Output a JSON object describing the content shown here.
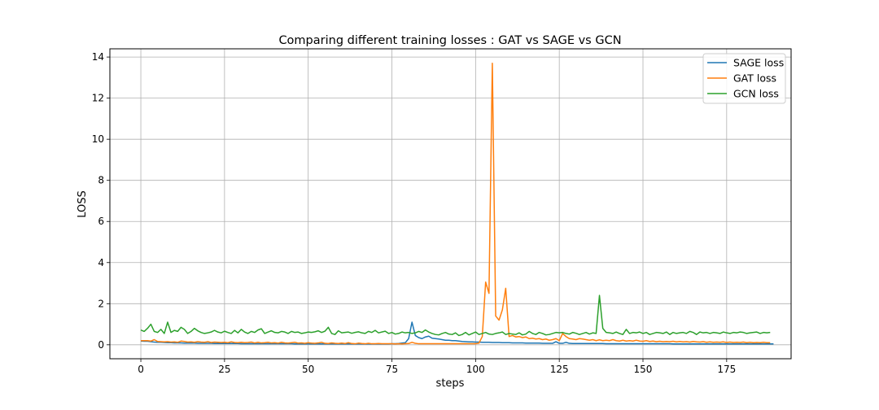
{
  "chart_data": {
    "type": "line",
    "title": "Comparing different training losses : GAT vs SAGE vs GCN",
    "xlabel": "steps",
    "ylabel": "LOSS",
    "xlim": [
      -9.25,
      194.25
    ],
    "ylim": [
      -0.68,
      14.4
    ],
    "xticks": [
      0,
      25,
      50,
      75,
      100,
      125,
      150,
      175
    ],
    "yticks": [
      0,
      2,
      4,
      6,
      8,
      10,
      12,
      14
    ],
    "grid": true,
    "legend": "top-right",
    "series": [
      {
        "name": "SAGE loss",
        "color": "#1f77b4",
        "values": [
          0.18,
          0.17,
          0.17,
          0.15,
          0.13,
          0.12,
          0.12,
          0.11,
          0.1,
          0.1,
          0.09,
          0.09,
          0.09,
          0.08,
          0.08,
          0.08,
          0.08,
          0.07,
          0.07,
          0.07,
          0.07,
          0.07,
          0.06,
          0.06,
          0.06,
          0.06,
          0.06,
          0.06,
          0.06,
          0.06,
          0.05,
          0.05,
          0.05,
          0.05,
          0.05,
          0.05,
          0.05,
          0.05,
          0.05,
          0.05,
          0.05,
          0.05,
          0.05,
          0.05,
          0.05,
          0.05,
          0.04,
          0.04,
          0.04,
          0.04,
          0.04,
          0.04,
          0.04,
          0.04,
          0.04,
          0.04,
          0.04,
          0.04,
          0.04,
          0.04,
          0.04,
          0.04,
          0.04,
          0.04,
          0.04,
          0.04,
          0.04,
          0.04,
          0.04,
          0.04,
          0.04,
          0.04,
          0.04,
          0.04,
          0.04,
          0.05,
          0.05,
          0.06,
          0.08,
          0.1,
          0.3,
          1.1,
          0.45,
          0.35,
          0.3,
          0.38,
          0.42,
          0.32,
          0.3,
          0.28,
          0.25,
          0.22,
          0.22,
          0.2,
          0.2,
          0.18,
          0.16,
          0.15,
          0.14,
          0.14,
          0.13,
          0.13,
          0.12,
          0.12,
          0.12,
          0.11,
          0.11,
          0.11,
          0.1,
          0.1,
          0.1,
          0.09,
          0.09,
          0.09,
          0.09,
          0.08,
          0.08,
          0.08,
          0.08,
          0.08,
          0.07,
          0.07,
          0.07,
          0.07,
          0.15,
          0.07,
          0.07,
          0.12,
          0.07,
          0.06,
          0.06,
          0.06,
          0.06,
          0.06,
          0.06,
          0.06,
          0.06,
          0.06,
          0.06,
          0.05,
          0.05,
          0.05,
          0.05,
          0.05,
          0.05,
          0.05,
          0.05,
          0.05,
          0.05,
          0.05,
          0.05,
          0.05,
          0.05,
          0.05,
          0.05,
          0.05,
          0.05,
          0.05,
          0.05,
          0.04,
          0.04,
          0.04,
          0.04,
          0.04,
          0.04,
          0.04,
          0.04,
          0.04,
          0.04,
          0.04,
          0.04,
          0.04,
          0.04,
          0.04,
          0.04,
          0.04,
          0.04,
          0.04,
          0.04,
          0.04,
          0.04,
          0.04,
          0.04,
          0.04,
          0.04,
          0.04,
          0.04,
          0.04,
          0.04,
          0.04
        ]
      },
      {
        "name": "GAT loss",
        "color": "#ff7f0e",
        "values": [
          0.2,
          0.2,
          0.2,
          0.18,
          0.25,
          0.16,
          0.15,
          0.14,
          0.15,
          0.13,
          0.14,
          0.12,
          0.18,
          0.16,
          0.13,
          0.14,
          0.12,
          0.15,
          0.13,
          0.12,
          0.15,
          0.11,
          0.13,
          0.12,
          0.11,
          0.12,
          0.1,
          0.14,
          0.11,
          0.1,
          0.12,
          0.1,
          0.11,
          0.13,
          0.09,
          0.12,
          0.09,
          0.1,
          0.12,
          0.09,
          0.1,
          0.08,
          0.12,
          0.09,
          0.08,
          0.1,
          0.12,
          0.08,
          0.09,
          0.07,
          0.1,
          0.08,
          0.07,
          0.09,
          0.12,
          0.07,
          0.06,
          0.09,
          0.07,
          0.06,
          0.08,
          0.06,
          0.1,
          0.06,
          0.05,
          0.08,
          0.06,
          0.05,
          0.07,
          0.05,
          0.05,
          0.06,
          0.05,
          0.05,
          0.05,
          0.05,
          0.04,
          0.05,
          0.04,
          0.05,
          0.06,
          0.12,
          0.07,
          0.05,
          0.05,
          0.05,
          0.05,
          0.05,
          0.05,
          0.05,
          0.05,
          0.05,
          0.05,
          0.05,
          0.05,
          0.05,
          0.05,
          0.05,
          0.05,
          0.05,
          0.05,
          0.08,
          0.4,
          3.05,
          2.5,
          13.7,
          1.4,
          1.2,
          1.7,
          2.75,
          0.4,
          0.45,
          0.38,
          0.4,
          0.35,
          0.38,
          0.3,
          0.32,
          0.28,
          0.3,
          0.25,
          0.28,
          0.22,
          0.25,
          0.3,
          0.2,
          0.55,
          0.4,
          0.3,
          0.28,
          0.25,
          0.3,
          0.28,
          0.25,
          0.22,
          0.25,
          0.2,
          0.24,
          0.2,
          0.22,
          0.2,
          0.25,
          0.2,
          0.18,
          0.22,
          0.18,
          0.2,
          0.18,
          0.22,
          0.18,
          0.17,
          0.2,
          0.16,
          0.18,
          0.15,
          0.17,
          0.15,
          0.16,
          0.15,
          0.17,
          0.14,
          0.16,
          0.14,
          0.15,
          0.13,
          0.16,
          0.14,
          0.13,
          0.15,
          0.12,
          0.14,
          0.12,
          0.13,
          0.12,
          0.14,
          0.11,
          0.13,
          0.11,
          0.12,
          0.11,
          0.13,
          0.1,
          0.12,
          0.1,
          0.11,
          0.1,
          0.12,
          0.1,
          0.1
        ]
      },
      {
        "name": "GCN loss",
        "color": "#2ca02c",
        "values": [
          0.72,
          0.65,
          0.8,
          1.0,
          0.65,
          0.6,
          0.75,
          0.55,
          1.1,
          0.6,
          0.7,
          0.65,
          0.85,
          0.75,
          0.55,
          0.65,
          0.8,
          0.68,
          0.6,
          0.55,
          0.58,
          0.62,
          0.7,
          0.62,
          0.58,
          0.66,
          0.6,
          0.55,
          0.7,
          0.58,
          0.75,
          0.62,
          0.55,
          0.65,
          0.6,
          0.72,
          0.78,
          0.55,
          0.62,
          0.68,
          0.6,
          0.58,
          0.65,
          0.62,
          0.55,
          0.65,
          0.6,
          0.62,
          0.55,
          0.58,
          0.62,
          0.6,
          0.63,
          0.68,
          0.6,
          0.66,
          0.85,
          0.55,
          0.5,
          0.68,
          0.58,
          0.6,
          0.62,
          0.56,
          0.6,
          0.63,
          0.58,
          0.55,
          0.65,
          0.6,
          0.7,
          0.58,
          0.62,
          0.66,
          0.55,
          0.6,
          0.52,
          0.55,
          0.62,
          0.58,
          0.6,
          0.55,
          0.58,
          0.65,
          0.6,
          0.72,
          0.62,
          0.55,
          0.5,
          0.48,
          0.55,
          0.6,
          0.52,
          0.5,
          0.58,
          0.45,
          0.5,
          0.6,
          0.48,
          0.55,
          0.62,
          0.5,
          0.55,
          0.6,
          0.52,
          0.5,
          0.55,
          0.58,
          0.62,
          0.5,
          0.55,
          0.52,
          0.5,
          0.58,
          0.48,
          0.52,
          0.65,
          0.55,
          0.5,
          0.6,
          0.55,
          0.48,
          0.5,
          0.55,
          0.6,
          0.58,
          0.6,
          0.55,
          0.52,
          0.6,
          0.56,
          0.5,
          0.55,
          0.6,
          0.52,
          0.58,
          0.55,
          2.4,
          0.8,
          0.6,
          0.58,
          0.55,
          0.62,
          0.55,
          0.5,
          0.75,
          0.55,
          0.6,
          0.58,
          0.62,
          0.55,
          0.6,
          0.5,
          0.55,
          0.6,
          0.58,
          0.55,
          0.62,
          0.5,
          0.6,
          0.55,
          0.58,
          0.6,
          0.55,
          0.65,
          0.6,
          0.5,
          0.62,
          0.58,
          0.6,
          0.55,
          0.6,
          0.58,
          0.55,
          0.62,
          0.58,
          0.55,
          0.6,
          0.58,
          0.62,
          0.6,
          0.55,
          0.58,
          0.6,
          0.62,
          0.55,
          0.6,
          0.58,
          0.6
        ]
      }
    ]
  }
}
